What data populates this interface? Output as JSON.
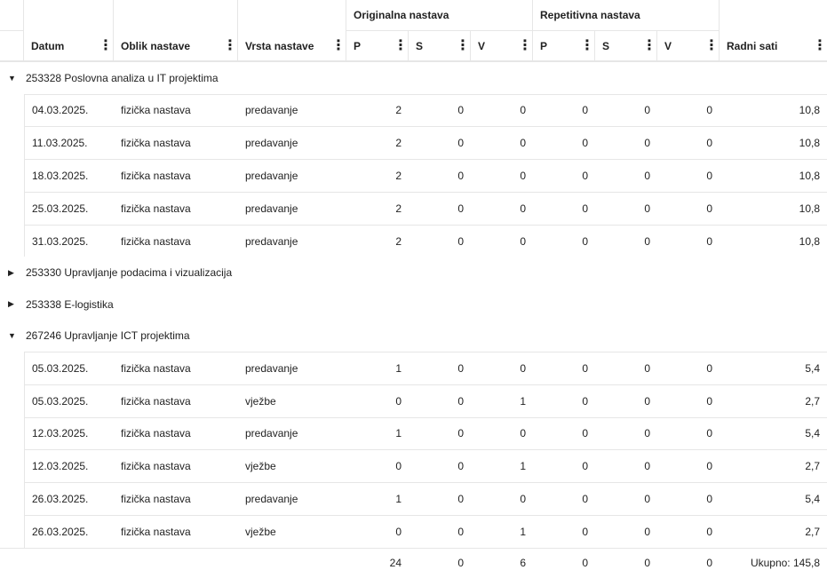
{
  "header": {
    "group_original": "Originalna nastava",
    "group_repetitive": "Repetitivna nastava",
    "columns": [
      "Datum",
      "Oblik nastave",
      "Vrsta nastave",
      "P",
      "S",
      "V",
      "P",
      "S",
      "V",
      "Radni sati"
    ]
  },
  "groups": [
    {
      "title": "253328 Poslovna analiza u IT projektima",
      "expanded": true,
      "rows": [
        [
          "04.03.2025.",
          "fizička nastava",
          "predavanje",
          "2",
          "0",
          "0",
          "0",
          "0",
          "0",
          "10,8"
        ],
        [
          "11.03.2025.",
          "fizička nastava",
          "predavanje",
          "2",
          "0",
          "0",
          "0",
          "0",
          "0",
          "10,8"
        ],
        [
          "18.03.2025.",
          "fizička nastava",
          "predavanje",
          "2",
          "0",
          "0",
          "0",
          "0",
          "0",
          "10,8"
        ],
        [
          "25.03.2025.",
          "fizička nastava",
          "predavanje",
          "2",
          "0",
          "0",
          "0",
          "0",
          "0",
          "10,8"
        ],
        [
          "31.03.2025.",
          "fizička nastava",
          "predavanje",
          "2",
          "0",
          "0",
          "0",
          "0",
          "0",
          "10,8"
        ]
      ]
    },
    {
      "title": "253330 Upravljanje podacima i vizualizacija",
      "expanded": false,
      "rows": []
    },
    {
      "title": "253338 E-logistika",
      "expanded": false,
      "rows": []
    },
    {
      "title": "267246 Upravljanje ICT projektima",
      "expanded": true,
      "rows": [
        [
          "05.03.2025.",
          "fizička nastava",
          "predavanje",
          "1",
          "0",
          "0",
          "0",
          "0",
          "0",
          "5,4"
        ],
        [
          "05.03.2025.",
          "fizička nastava",
          "vježbe",
          "0",
          "0",
          "1",
          "0",
          "0",
          "0",
          "2,7"
        ],
        [
          "12.03.2025.",
          "fizička nastava",
          "predavanje",
          "1",
          "0",
          "0",
          "0",
          "0",
          "0",
          "5,4"
        ],
        [
          "12.03.2025.",
          "fizička nastava",
          "vježbe",
          "0",
          "0",
          "1",
          "0",
          "0",
          "0",
          "2,7"
        ],
        [
          "26.03.2025.",
          "fizička nastava",
          "predavanje",
          "1",
          "0",
          "0",
          "0",
          "0",
          "0",
          "5,4"
        ],
        [
          "26.03.2025.",
          "fizička nastava",
          "vježbe",
          "0",
          "0",
          "1",
          "0",
          "0",
          "0",
          "2,7"
        ]
      ]
    }
  ],
  "totals": [
    "24",
    "0",
    "6",
    "0",
    "0",
    "0",
    "Ukupno: 145,8"
  ]
}
